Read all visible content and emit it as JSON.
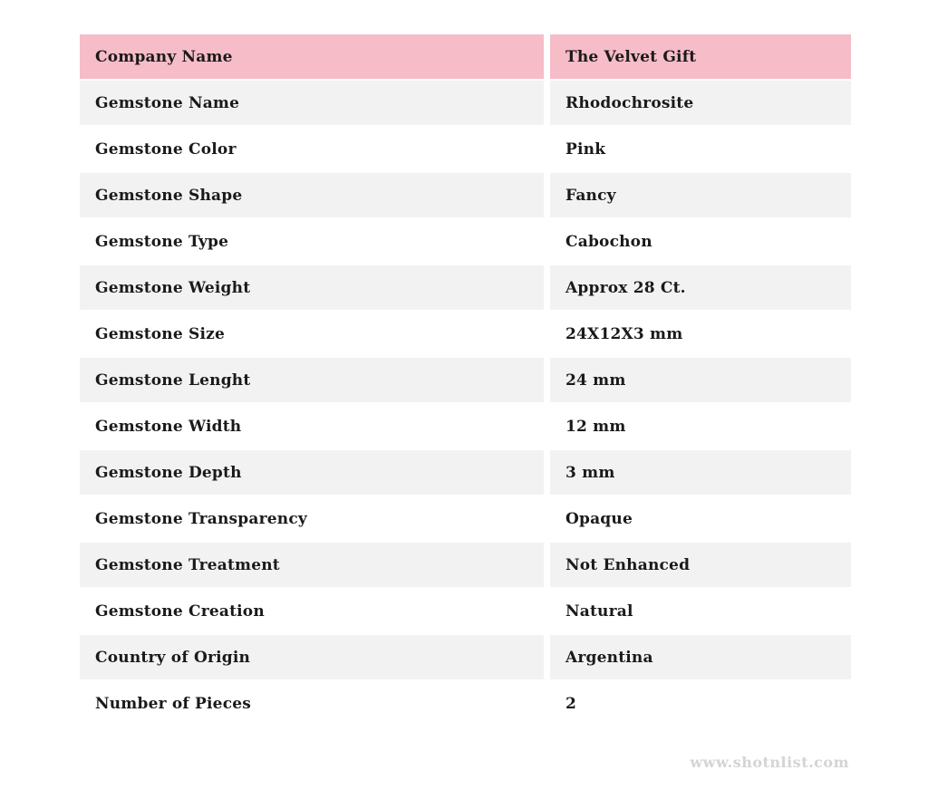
{
  "colors": {
    "header_pink": "#f6bcc8",
    "row_alt_gray": "#f2f2f2",
    "row_white": "#ffffff",
    "text": "#1a1a1a",
    "watermark_gray": "#d4d4d4"
  },
  "table": {
    "rows": [
      {
        "label": "Company Name",
        "value": "The Velvet Gift"
      },
      {
        "label": "Gemstone Name",
        "value": "Rhodochrosite"
      },
      {
        "label": "Gemstone Color",
        "value": "Pink"
      },
      {
        "label": "Gemstone Shape",
        "value": "Fancy"
      },
      {
        "label": "Gemstone Type",
        "value": "Cabochon"
      },
      {
        "label": "Gemstone Weight",
        "value": "Approx 28 Ct."
      },
      {
        "label": "Gemstone Size",
        "value": "24X12X3 mm"
      },
      {
        "label": "Gemstone Lenght",
        "value": "24 mm"
      },
      {
        "label": "Gemstone Width",
        "value": "12 mm"
      },
      {
        "label": "Gemstone Depth",
        "value": "3 mm"
      },
      {
        "label": "Gemstone Transparency",
        "value": "Opaque"
      },
      {
        "label": "Gemstone Treatment",
        "value": "Not Enhanced"
      },
      {
        "label": "Gemstone Creation",
        "value": "Natural"
      },
      {
        "label": "Country of Origin",
        "value": "Argentina"
      },
      {
        "label": "Number of Pieces",
        "value": "2"
      }
    ]
  },
  "footer": {
    "watermark": "www.shotnlist.com"
  }
}
